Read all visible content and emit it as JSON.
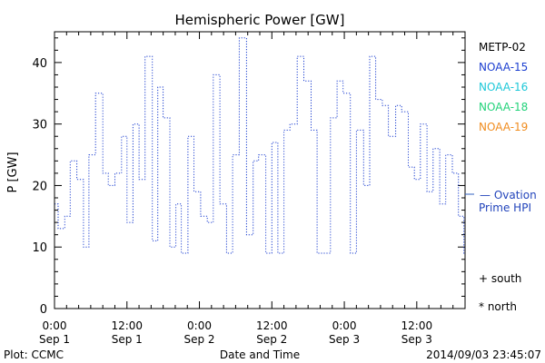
{
  "chart_data": {
    "type": "line",
    "title": "Hemispheric Power [GW]",
    "xlabel": "Date and Time",
    "ylabel": "P [GW]",
    "ylim": [
      0,
      45
    ],
    "xlim_hours": [
      0,
      68
    ],
    "yticks": [
      0,
      10,
      20,
      30,
      40
    ],
    "xticks": [
      {
        "hour": 0,
        "time": "0:00",
        "date": "Sep 1"
      },
      {
        "hour": 12,
        "time": "12:00",
        "date": "Sep 1"
      },
      {
        "hour": 24,
        "time": "0:00",
        "date": "Sep 2"
      },
      {
        "hour": 36,
        "time": "12:00",
        "date": "Sep 2"
      },
      {
        "hour": 48,
        "time": "0:00",
        "date": "Sep 3"
      },
      {
        "hour": 60,
        "time": "12:00",
        "date": "Sep 3"
      }
    ],
    "grid": false,
    "legend": [
      {
        "name": "METP-02",
        "color": "#000000"
      },
      {
        "name": "NOAA-15",
        "color": "#1c3fd0"
      },
      {
        "name": "NOAA-16",
        "color": "#1ec8d8"
      },
      {
        "name": "NOAA-18",
        "color": "#22d27a"
      },
      {
        "name": "NOAA-19",
        "color": "#f08c1e"
      }
    ],
    "annotations": {
      "ovation": [
        "— Ovation",
        "Prime HPI"
      ],
      "south": "+ south",
      "north": "* north",
      "plot_credit": "Plot: CCMC",
      "timestamp": "2014/09/03 23:45:07"
    },
    "colors": {
      "series": "#1c3fd0",
      "ovation": "#3060c0",
      "axes": "#000000"
    },
    "series": [
      {
        "name": "NOAA-15",
        "style": "dotted-step",
        "x": [
          0,
          0.6,
          1.7,
          2.6,
          3.7,
          4.8,
          5.7,
          6.8,
          8.0,
          8.9,
          10.0,
          11.1,
          12.0,
          13.0,
          14.0,
          15.0,
          16.2,
          17.1,
          18.0,
          19.1,
          20.1,
          21.0,
          22.1,
          23.1,
          24.2,
          25.3,
          26.3,
          27.4,
          28.5,
          29.5,
          30.6,
          31.8,
          32.9,
          33.8,
          35.0,
          36.0,
          37.0,
          38.0,
          39.0,
          40.2,
          41.3,
          42.5,
          43.5,
          44.6,
          45.7,
          46.8,
          47.8,
          49.0,
          50.0,
          51.2,
          52.2,
          53.2,
          54.3,
          55.3,
          56.5,
          57.5,
          58.6,
          59.6,
          60.6,
          61.7,
          62.7,
          63.8,
          64.8,
          65.9,
          66.9,
          67.8
        ],
        "values": [
          17,
          13,
          15,
          24,
          21,
          10,
          25,
          35,
          22,
          20,
          22,
          28,
          14,
          30,
          21,
          41,
          11,
          36,
          31,
          10,
          17,
          9,
          28,
          19,
          15,
          14,
          38,
          17,
          9,
          25,
          44,
          12,
          24,
          25,
          9,
          27,
          9,
          29,
          30,
          41,
          37,
          29,
          9,
          9,
          31,
          37,
          35,
          9,
          29,
          20,
          41,
          34,
          33,
          28,
          33,
          32,
          23,
          21,
          30,
          19,
          26,
          17,
          25,
          22,
          15,
          9
        ]
      }
    ]
  }
}
